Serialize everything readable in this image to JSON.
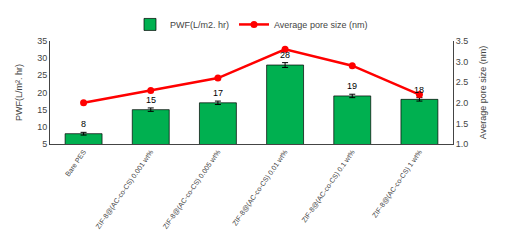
{
  "chart_data": {
    "type": "bar",
    "categories": [
      "Bare PES",
      "ZIF-8@(AC-co-CS) 0.001 wt%",
      "ZIF-8@(AC-co-CS) 0.005 wt%",
      "ZIF-8@(AC-co-CS) 0.01 wt%",
      "ZIF-8@(AC-co-CS) 0.1 wt%",
      "ZIF-8@(AC-co-CS) 1 wt%"
    ],
    "series": [
      {
        "name": "PWF(L/m2. hr)",
        "type": "bar",
        "color": "#00b050",
        "values": [
          8,
          15,
          17,
          28,
          19,
          18
        ],
        "errors": [
          0.4,
          0.5,
          0.5,
          0.7,
          0.5,
          0.5
        ],
        "data_labels": true
      },
      {
        "name": "Average pore size (nm)",
        "type": "line",
        "axis": "y2",
        "color": "#ff0000",
        "marker": "circle",
        "line_style": "solid",
        "values": [
          2.0,
          2.3,
          2.6,
          3.3,
          2.9,
          2.2
        ]
      }
    ],
    "ylabel": "PWF(L/m². hr)",
    "y2label": "Average pore size (nm)",
    "ylim": [
      5,
      35
    ],
    "yticks": [
      5,
      10,
      15,
      20,
      25,
      30,
      35
    ],
    "y2lim": [
      1.0,
      3.5
    ],
    "y2ticks": [
      {
        "value": 1.0,
        "label": "1.0"
      },
      1.5,
      {
        "value": 2.0,
        "label": "2.0"
      },
      2.5,
      {
        "value": 3.0,
        "label": "3.0"
      },
      3.5
    ],
    "grid": false,
    "legend": "top"
  }
}
